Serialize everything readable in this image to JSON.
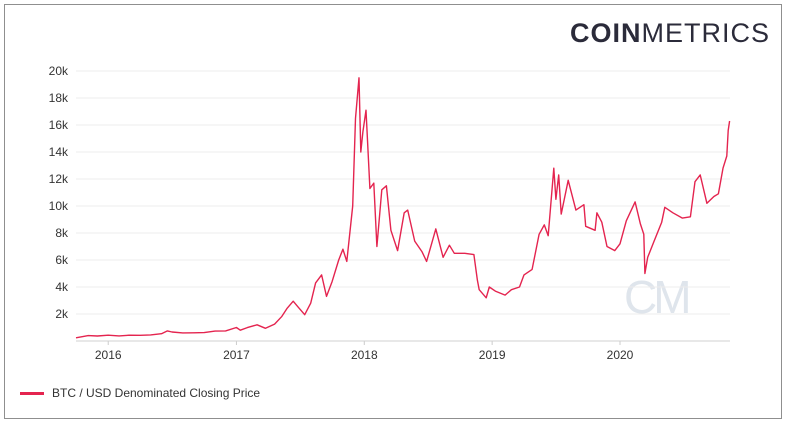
{
  "logo": {
    "bold": "COIN",
    "light": "METRICS"
  },
  "watermark": "CM",
  "colors": {
    "line": "#e4244f",
    "grid": "#ececec",
    "text": "#333333"
  },
  "chart_data": {
    "type": "line",
    "title": "",
    "xlabel": "",
    "ylabel": "",
    "ylim": [
      0,
      20000
    ],
    "xlim": [
      "2015-10-01",
      "2020-11-10"
    ],
    "grid": true,
    "legend_position": "bottom-left",
    "y_ticks": [
      {
        "value": 2000,
        "label": "2k"
      },
      {
        "value": 4000,
        "label": "4k"
      },
      {
        "value": 6000,
        "label": "6k"
      },
      {
        "value": 8000,
        "label": "8k"
      },
      {
        "value": 10000,
        "label": "10k"
      },
      {
        "value": 12000,
        "label": "12k"
      },
      {
        "value": 14000,
        "label": "14k"
      },
      {
        "value": 16000,
        "label": "16k"
      },
      {
        "value": 18000,
        "label": "18k"
      },
      {
        "value": 20000,
        "label": "20k"
      }
    ],
    "x_ticks": [
      {
        "value": "2016-01-01",
        "label": "2016"
      },
      {
        "value": "2017-01-01",
        "label": "2017"
      },
      {
        "value": "2018-01-01",
        "label": "2018"
      },
      {
        "value": "2019-01-01",
        "label": "2019"
      },
      {
        "value": "2020-01-01",
        "label": "2020"
      }
    ],
    "series": [
      {
        "name": "BTC / USD Denominated Closing Price",
        "color": "#e4244f",
        "points": [
          [
            "2015-10-01",
            240
          ],
          [
            "2015-11-05",
            400
          ],
          [
            "2015-12-01",
            370
          ],
          [
            "2016-01-01",
            430
          ],
          [
            "2016-02-01",
            380
          ],
          [
            "2016-03-01",
            430
          ],
          [
            "2016-04-01",
            420
          ],
          [
            "2016-05-01",
            450
          ],
          [
            "2016-06-01",
            540
          ],
          [
            "2016-06-18",
            750
          ],
          [
            "2016-07-01",
            670
          ],
          [
            "2016-08-01",
            600
          ],
          [
            "2016-09-01",
            610
          ],
          [
            "2016-10-01",
            620
          ],
          [
            "2016-11-01",
            730
          ],
          [
            "2016-12-01",
            750
          ],
          [
            "2017-01-01",
            1000
          ],
          [
            "2017-01-12",
            800
          ],
          [
            "2017-02-01",
            990
          ],
          [
            "2017-03-01",
            1200
          ],
          [
            "2017-03-25",
            940
          ],
          [
            "2017-04-20",
            1250
          ],
          [
            "2017-05-10",
            1800
          ],
          [
            "2017-05-25",
            2400
          ],
          [
            "2017-06-12",
            2950
          ],
          [
            "2017-06-25",
            2550
          ],
          [
            "2017-07-15",
            1950
          ],
          [
            "2017-08-01",
            2800
          ],
          [
            "2017-08-15",
            4300
          ],
          [
            "2017-09-01",
            4900
          ],
          [
            "2017-09-15",
            3300
          ],
          [
            "2017-10-01",
            4400
          ],
          [
            "2017-10-20",
            6000
          ],
          [
            "2017-11-01",
            6800
          ],
          [
            "2017-11-12",
            5900
          ],
          [
            "2017-11-29",
            10000
          ],
          [
            "2017-12-07",
            16500
          ],
          [
            "2017-12-17",
            19500
          ],
          [
            "2017-12-22",
            14000
          ],
          [
            "2017-12-28",
            15500
          ],
          [
            "2018-01-06",
            17100
          ],
          [
            "2018-01-17",
            11300
          ],
          [
            "2018-01-28",
            11700
          ],
          [
            "2018-02-06",
            7000
          ],
          [
            "2018-02-20",
            11200
          ],
          [
            "2018-03-05",
            11500
          ],
          [
            "2018-03-18",
            8200
          ],
          [
            "2018-04-06",
            6700
          ],
          [
            "2018-04-25",
            9500
          ],
          [
            "2018-05-05",
            9700
          ],
          [
            "2018-05-25",
            7400
          ],
          [
            "2018-06-15",
            6600
          ],
          [
            "2018-06-28",
            5900
          ],
          [
            "2018-07-24",
            8300
          ],
          [
            "2018-08-14",
            6200
          ],
          [
            "2018-09-01",
            7100
          ],
          [
            "2018-09-15",
            6500
          ],
          [
            "2018-10-15",
            6500
          ],
          [
            "2018-11-10",
            6400
          ],
          [
            "2018-11-20",
            4500
          ],
          [
            "2018-11-25",
            3800
          ],
          [
            "2018-12-15",
            3200
          ],
          [
            "2018-12-24",
            4000
          ],
          [
            "2019-01-10",
            3700
          ],
          [
            "2019-02-07",
            3400
          ],
          [
            "2019-02-25",
            3800
          ],
          [
            "2019-03-20",
            4000
          ],
          [
            "2019-04-02",
            4900
          ],
          [
            "2019-04-25",
            5300
          ],
          [
            "2019-05-15",
            7900
          ],
          [
            "2019-05-30",
            8600
          ],
          [
            "2019-06-10",
            7800
          ],
          [
            "2019-06-26",
            12800
          ],
          [
            "2019-07-02",
            10500
          ],
          [
            "2019-07-10",
            12300
          ],
          [
            "2019-07-17",
            9400
          ],
          [
            "2019-08-06",
            11900
          ],
          [
            "2019-08-28",
            9700
          ],
          [
            "2019-09-20",
            10100
          ],
          [
            "2019-09-25",
            8500
          ],
          [
            "2019-10-22",
            8200
          ],
          [
            "2019-10-27",
            9500
          ],
          [
            "2019-11-10",
            8800
          ],
          [
            "2019-11-25",
            7000
          ],
          [
            "2019-12-17",
            6700
          ],
          [
            "2020-01-01",
            7200
          ],
          [
            "2020-01-19",
            8900
          ],
          [
            "2020-02-13",
            10300
          ],
          [
            "2020-02-28",
            8700
          ],
          [
            "2020-03-09",
            7900
          ],
          [
            "2020-03-12",
            5000
          ],
          [
            "2020-03-20",
            6200
          ],
          [
            "2020-04-06",
            7300
          ],
          [
            "2020-04-29",
            8800
          ],
          [
            "2020-05-08",
            9900
          ],
          [
            "2020-05-31",
            9500
          ],
          [
            "2020-06-27",
            9100
          ],
          [
            "2020-07-20",
            9200
          ],
          [
            "2020-08-02",
            11800
          ],
          [
            "2020-08-17",
            12300
          ],
          [
            "2020-09-05",
            10200
          ],
          [
            "2020-09-25",
            10700
          ],
          [
            "2020-10-08",
            10900
          ],
          [
            "2020-10-21",
            12800
          ],
          [
            "2020-11-01",
            13700
          ],
          [
            "2020-11-05",
            15600
          ],
          [
            "2020-11-09",
            16300
          ]
        ]
      }
    ]
  }
}
